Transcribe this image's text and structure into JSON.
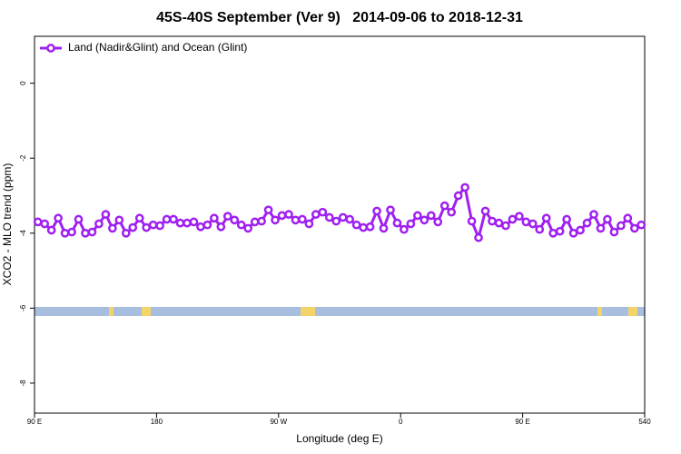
{
  "chart_data": {
    "type": "line",
    "title": "45S-40S September (Ver 9)   2014-09-06 to 2018-12-31",
    "xlabel": "Longitude (deg E)",
    "ylabel": "XCO2 - MLO trend (ppm)",
    "x": [
      92.5,
      97.5,
      102.5,
      107.5,
      112.5,
      117.5,
      122.5,
      127.5,
      132.5,
      137.5,
      142.5,
      147.5,
      152.5,
      157.5,
      162.5,
      167.5,
      172.5,
      177.5,
      182.5,
      187.5,
      192.5,
      197.5,
      202.5,
      207.5,
      212.5,
      217.5,
      222.5,
      227.5,
      232.5,
      237.5,
      242.5,
      247.5,
      252.5,
      257.5,
      262.5,
      267.5,
      272.5,
      277.5,
      282.5,
      287.5,
      292.5,
      297.5,
      302.5,
      307.5,
      312.5,
      317.5,
      322.5,
      327.5,
      332.5,
      337.5,
      342.5,
      347.5,
      352.5,
      357.5,
      362.5,
      367.5,
      372.5,
      377.5,
      382.5,
      387.5,
      392.5,
      397.5,
      402.5,
      407.5,
      412.5,
      417.5,
      422.5,
      427.5,
      432.5,
      437.5,
      442.5,
      447.5,
      452.5,
      457.5,
      462.5,
      467.5,
      472.5,
      477.5,
      482.5,
      487.5,
      492.5,
      497.5,
      502.5,
      507.5,
      512.5,
      517.5,
      522.5,
      527.5,
      532.5,
      537.5
    ],
    "series": [
      {
        "name": "Land (Nadir&Glint) and Ocean (Glint)",
        "color": "#a020f0",
        "values": [
          -3.7,
          -3.75,
          -3.92,
          -3.6,
          -4.0,
          -3.97,
          -3.63,
          -4.0,
          -3.97,
          -3.75,
          -3.5,
          -3.87,
          -3.65,
          -4.0,
          -3.85,
          -3.6,
          -3.85,
          -3.78,
          -3.8,
          -3.63,
          -3.63,
          -3.73,
          -3.73,
          -3.7,
          -3.83,
          -3.78,
          -3.6,
          -3.83,
          -3.55,
          -3.65,
          -3.78,
          -3.87,
          -3.7,
          -3.68,
          -3.38,
          -3.65,
          -3.53,
          -3.5,
          -3.65,
          -3.63,
          -3.75,
          -3.5,
          -3.44,
          -3.58,
          -3.68,
          -3.58,
          -3.63,
          -3.78,
          -3.85,
          -3.83,
          -3.41,
          -3.87,
          -3.38,
          -3.73,
          -3.9,
          -3.75,
          -3.53,
          -3.65,
          -3.53,
          -3.7,
          -3.27,
          -3.44,
          -3.0,
          -2.78,
          -3.68,
          -4.12,
          -3.41,
          -3.68,
          -3.73,
          -3.8,
          -3.63,
          -3.55,
          -3.7,
          -3.75,
          -3.9,
          -3.6,
          -4.0,
          -3.95,
          -3.63,
          -4.0,
          -3.92,
          -3.73,
          -3.5,
          -3.87,
          -3.63,
          -3.97,
          -3.8,
          -3.6,
          -3.87,
          -3.78
        ]
      }
    ],
    "xlim": [
      90,
      540
    ],
    "xticks": [
      {
        "value": 90,
        "label": "90 E"
      },
      180,
      {
        "value": 270,
        "label": "90 W"
      },
      {
        "value": 360,
        "label": "0"
      },
      {
        "value": 450,
        "label": "90 E"
      },
      540
    ],
    "ylim": [
      -8.8,
      1.25
    ],
    "yticks": [
      0,
      -2,
      -4,
      -6,
      -8
    ],
    "legend": "top-left"
  }
}
